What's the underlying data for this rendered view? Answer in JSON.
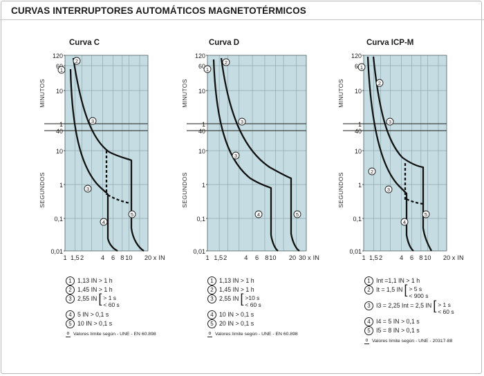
{
  "title": "CURVAS INTERRUPTORES AUTOMÁTICOS MAGNETOTÉRMICOS",
  "panels": [
    {
      "title": "Curva C",
      "x_ticks": [
        "1",
        "1,5",
        "2",
        "4",
        "6",
        "8",
        "10",
        "20",
        "x",
        "IN"
      ],
      "legend": [
        {
          "num": "1",
          "text": "1,13 IN > 1 h"
        },
        {
          "num": "2",
          "text": "1,45 IN > 1 h"
        },
        {
          "num": "3",
          "text": "2,55 IN",
          "brace": [
            "> 1 s",
            "< 60 s"
          ]
        },
        {
          "num": "4",
          "text": "5 IN > 0,1 s"
        },
        {
          "num": "5",
          "text": "10 IN > 0,1 s"
        }
      ],
      "note": "Valores límite según - UNE - EN 60.898"
    },
    {
      "title": "Curva D",
      "x_ticks": [
        "1",
        "1,5",
        "2",
        "4",
        "6",
        "8",
        "10",
        "20",
        "30",
        "x",
        "IN"
      ],
      "legend": [
        {
          "num": "1",
          "text": "1,13 IN > 1 h"
        },
        {
          "num": "2",
          "text": "1,45 IN > 1 h"
        },
        {
          "num": "3",
          "text": "2,55 IN",
          "brace": [
            ">10 s",
            "< 60 s"
          ]
        },
        {
          "num": "4",
          "text": "10 IN > 0,1 s"
        },
        {
          "num": "5",
          "text": "20 IN > 0,1 s"
        }
      ],
      "note": "Valores límite según - UNE - EN 60.898"
    },
    {
      "title": "Curva ICP-M",
      "x_ticks": [
        "1",
        "1,5",
        "2",
        "4",
        "6",
        "8",
        "10",
        "20",
        "x",
        "IN"
      ],
      "legend": [
        {
          "num": "1",
          "text": "Int =1,1 IN > 1 h"
        },
        {
          "num": "2",
          "text": "It = 1,5 IN",
          "brace": [
            "> 5 s",
            "< 900 s"
          ]
        },
        {
          "num": "3",
          "text": "I3 = 2,25 Int = 2,5 IN",
          "brace": [
            "> 1 s",
            "< 60 s"
          ]
        },
        {
          "num": "4",
          "text": "I4 = 5 IN > 0,1 s"
        },
        {
          "num": "5",
          "text": "I5 = 8 IN > 0,1 s"
        }
      ],
      "note": "Valores límite según - UNE - 20317-88"
    }
  ],
  "y_ticks_top": [
    "120",
    "60",
    "10",
    "1"
  ],
  "y_ticks_bottom": [
    "40",
    "10",
    "1",
    "0,1",
    "0,01"
  ],
  "y_label_top": "MINUTOS",
  "y_label_bottom": "SEGUNDOS",
  "colors": {
    "plot_bg": "#c5dde2",
    "grid": "#8fa7ad",
    "curve": "#111111"
  }
}
